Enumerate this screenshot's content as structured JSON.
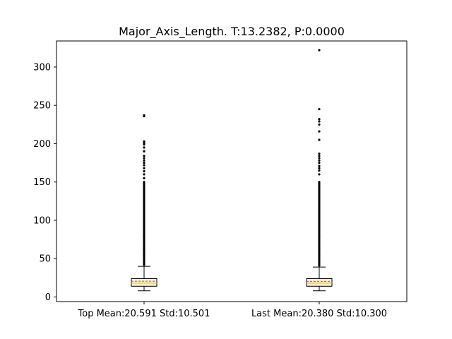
{
  "chart_data": {
    "type": "box",
    "title": "Major_Axis_Length. T:13.2382, P:0.0000",
    "xlabel": "",
    "ylabel": "",
    "ylim": [
      -6,
      334
    ],
    "yticks": [
      0,
      50,
      100,
      150,
      200,
      250,
      300
    ],
    "grid": false,
    "colors": {
      "box_fill": "#fdefc6",
      "box_edge": "#000000",
      "median": "#e8b867",
      "mean": "#5a7a7a"
    },
    "categories": [
      "Top Mean:20.591 Std:10.501",
      "Last Mean:20.380 Std:10.300"
    ],
    "series": [
      {
        "whisker_low": 8,
        "q1": 14,
        "median": 18,
        "mean": 20.591,
        "q3": 24,
        "whisker_high": 40,
        "outliers": [
          42,
          48,
          55,
          63,
          72,
          80,
          90,
          100,
          110,
          120,
          130,
          140,
          150,
          155,
          160,
          164,
          168,
          172,
          175,
          178,
          181,
          184,
          190,
          195,
          199,
          201,
          203,
          236,
          237
        ]
      },
      {
        "whisker_low": 8,
        "q1": 14,
        "median": 18,
        "mean": 20.38,
        "q3": 24,
        "whisker_high": 39,
        "outliers": [
          41,
          47,
          55,
          63,
          72,
          80,
          90,
          100,
          110,
          120,
          130,
          140,
          150,
          160,
          165,
          168,
          171,
          175,
          178,
          181,
          184,
          187,
          205,
          216,
          225,
          229,
          232,
          245,
          322
        ]
      }
    ]
  }
}
